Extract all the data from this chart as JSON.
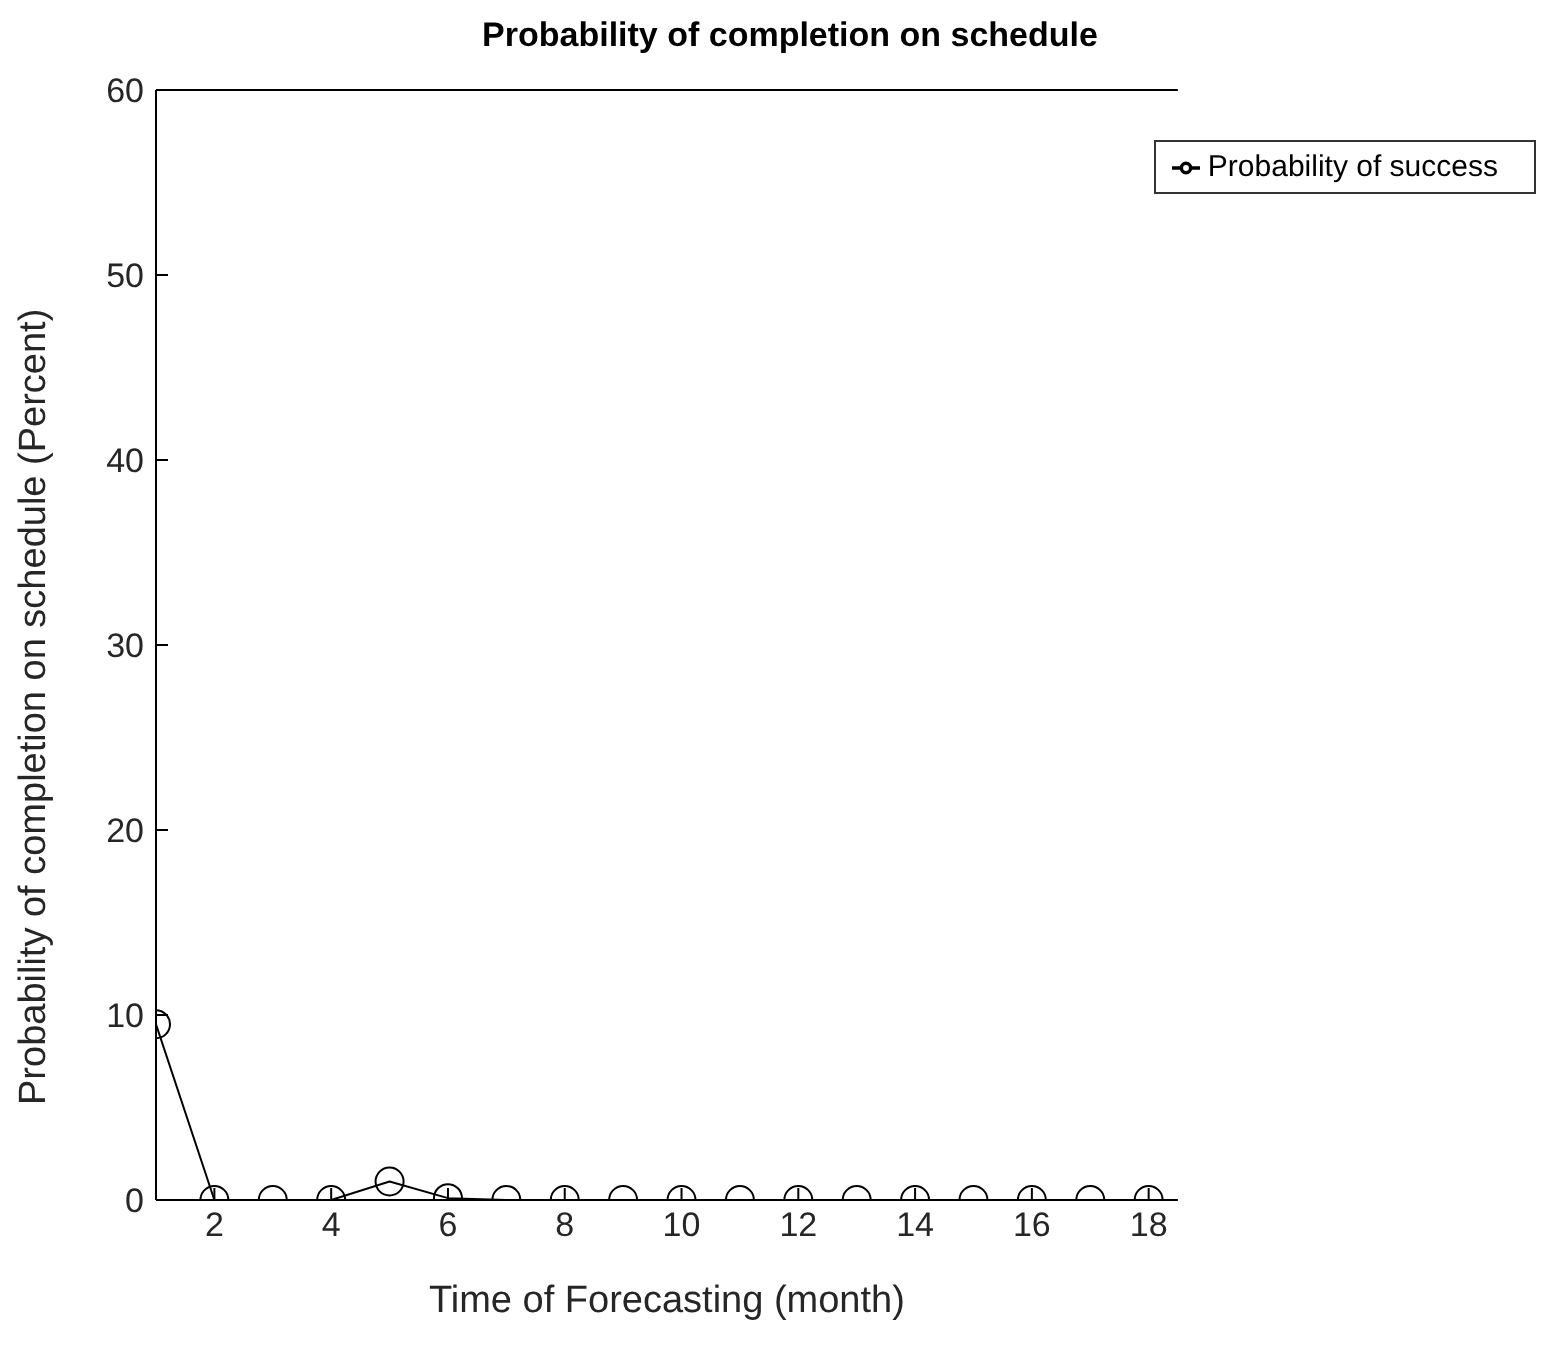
{
  "chart_data": {
    "type": "line",
    "title": "Probability of completion on schedule",
    "xlabel": "Time of Forecasting (month)",
    "ylabel": "Probability of completion on schedule (Percent)",
    "x": [
      1,
      2,
      3,
      4,
      5,
      6,
      7,
      8,
      9,
      10,
      11,
      12,
      13,
      14,
      15,
      16,
      17,
      18
    ],
    "series": [
      {
        "name": "Probability of success",
        "color": "#000000",
        "values": [
          9.5,
          0,
          0,
          0,
          1,
          0.1,
          0,
          0,
          0,
          0,
          0,
          0,
          0,
          0,
          0,
          0,
          0,
          0
        ]
      }
    ],
    "xlim": [
      1,
      18.5
    ],
    "xticks": [
      2,
      4,
      6,
      8,
      10,
      12,
      14,
      16,
      18
    ],
    "ylim": [
      0,
      60
    ],
    "yticks": [
      0,
      10,
      20,
      30,
      40,
      50,
      60
    ],
    "grid": false,
    "legend": "top right",
    "marker": "circle",
    "line_style": "solid"
  }
}
